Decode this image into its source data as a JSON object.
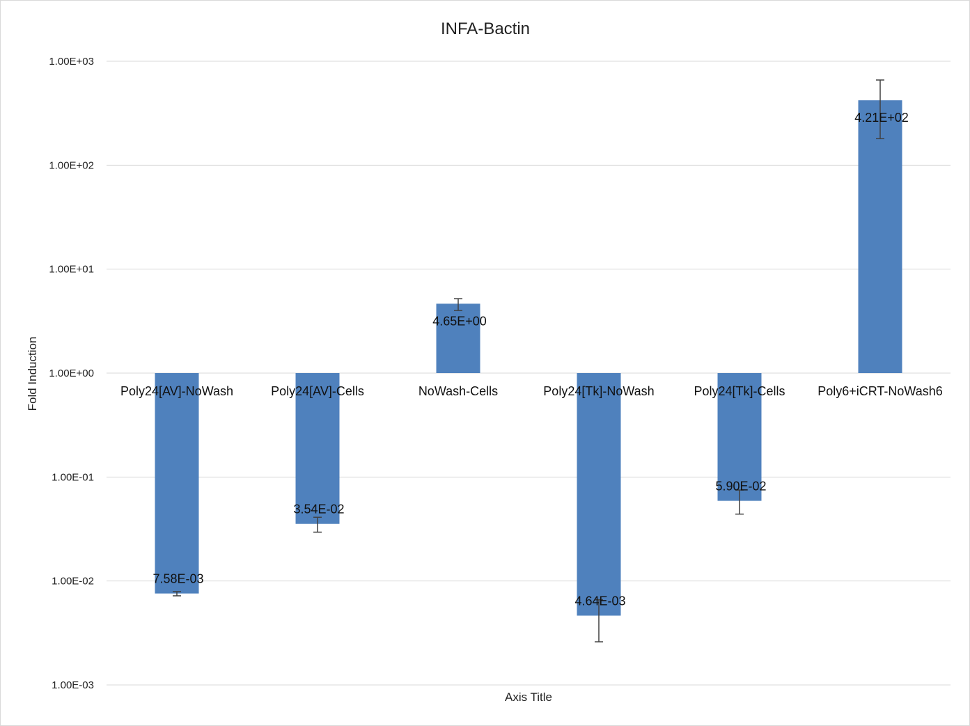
{
  "chart_data": {
    "type": "bar",
    "title": "INFA-Bactin",
    "xlabel": "Axis Title",
    "ylabel": "Fold Induction",
    "yscale": "log",
    "ylim": [
      0.001,
      1000
    ],
    "baseline": 1,
    "yticks": [
      0.001,
      0.01,
      0.1,
      1,
      10,
      100,
      1000
    ],
    "ytick_labels": [
      "1.00E-03",
      "1.00E-02",
      "1.00E-01",
      "1.00E+00",
      "1.00E+01",
      "1.00E+02",
      "1.00E+03"
    ],
    "grid": true,
    "legend": "none",
    "bar_color": "#4f81bd",
    "categories": [
      "Poly24[AV]-NoWash",
      "Poly24[AV]-Cells",
      "NoWash-Cells",
      "Poly24[Tk]-NoWash",
      "Poly24[Tk]-Cells",
      "Poly6+iCRT-NoWash6"
    ],
    "values": [
      0.00758,
      0.0354,
      4.65,
      0.00464,
      0.059,
      421
    ],
    "data_labels": [
      "7.58E-03",
      "3.54E-02",
      "4.65E+00",
      "4.64E-03",
      "5.90E-02",
      "4.21E+02"
    ],
    "error_low": [
      0.0072,
      0.0295,
      4.0,
      0.0026,
      0.044,
      180
    ],
    "error_high": [
      0.0079,
      0.041,
      5.2,
      0.0066,
      0.075,
      660
    ]
  }
}
